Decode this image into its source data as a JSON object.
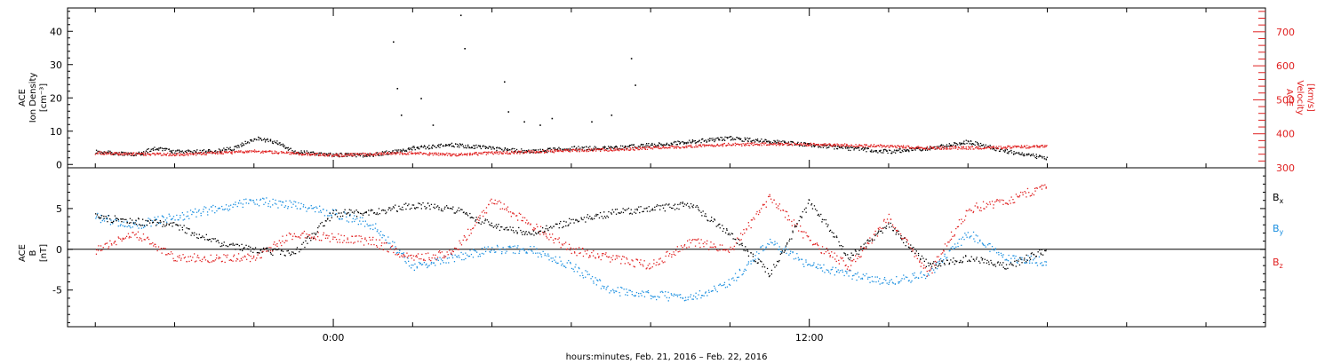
{
  "colors": {
    "black": "#000000",
    "red": "#e02020",
    "blue": "#1a8fe0"
  },
  "chart_data": [
    {
      "type": "scatter",
      "panel": "top",
      "ylabel_left_lines": [
        "ACE",
        "Ion Density",
        "[cm⁻³]"
      ],
      "ylabel_right_lines": [
        "ACE",
        "Velocity",
        "[km/s]"
      ],
      "ylim_left": [
        -1,
        47
      ],
      "ylim_right": [
        300,
        770
      ],
      "yticks_left": [
        0,
        10,
        20,
        30,
        40
      ],
      "yticks_right": [
        300,
        400,
        500,
        600,
        700
      ],
      "series": [
        {
          "axis": "left",
          "color": "black",
          "x": [
            -6,
            -5,
            -4.5,
            -4,
            -3,
            -2.5,
            -2,
            -1.5,
            -1,
            0,
            1,
            1.5,
            2,
            3,
            4,
            5,
            6,
            7,
            8,
            9,
            10,
            11,
            12,
            13,
            14,
            15,
            16,
            17,
            18
          ],
          "y": [
            4,
            3,
            5,
            4,
            4,
            5,
            8,
            7,
            4,
            3,
            3,
            4,
            5,
            6,
            5,
            4,
            5,
            5,
            6,
            7,
            8,
            7,
            6,
            5,
            4,
            5,
            7,
            4,
            2
          ]
        },
        {
          "axis": "left",
          "color": "black",
          "mode": "points",
          "x": [
            1.5,
            1.6,
            1.7,
            2.2,
            2.5,
            3.2,
            3.3,
            4.3,
            4.4,
            4.8,
            5.2,
            5.5,
            6.5,
            7.0,
            7.5,
            7.6
          ],
          "y": [
            37,
            23,
            15,
            20,
            12,
            45,
            35,
            25,
            16,
            13,
            12,
            14,
            13,
            15,
            32,
            24
          ]
        },
        {
          "axis": "right",
          "color": "red",
          "x": [
            -6,
            -4,
            -2,
            0,
            1,
            2,
            3,
            4,
            5,
            6,
            7,
            8,
            9,
            10,
            11,
            12,
            13,
            14,
            15,
            16,
            17,
            18
          ],
          "y": [
            345,
            340,
            350,
            338,
            342,
            345,
            340,
            345,
            348,
            352,
            355,
            360,
            365,
            370,
            372,
            370,
            368,
            365,
            360,
            360,
            362,
            365
          ]
        }
      ]
    },
    {
      "type": "scatter",
      "panel": "bottom",
      "ylabel_lines": [
        "ACE",
        "B",
        "[nT]"
      ],
      "ylim": [
        -9.5,
        10
      ],
      "yticks": [
        -5,
        0,
        5
      ],
      "legend": [
        {
          "label": "B",
          "sub": "x",
          "color": "black"
        },
        {
          "label": "B",
          "sub": "y",
          "color": "blue"
        },
        {
          "label": "B",
          "sub": "z",
          "color": "red"
        }
      ],
      "series": [
        {
          "label": "Bx",
          "color": "black",
          "x": [
            -6,
            -5,
            -4,
            -3,
            -2,
            -1,
            0,
            1,
            2,
            3,
            4,
            5,
            6,
            7,
            8,
            9,
            10,
            11,
            12,
            13,
            14,
            15,
            16,
            17,
            18
          ],
          "y": [
            4,
            3.5,
            3,
            1,
            0,
            -0.5,
            4.5,
            4.5,
            5.5,
            5,
            3,
            2,
            3.5,
            4.5,
            5,
            5.5,
            2,
            -3,
            6,
            -1,
            3,
            -2,
            -1,
            -2,
            0
          ]
        },
        {
          "label": "By",
          "color": "blue",
          "x": [
            -6,
            -5,
            -4,
            -3,
            -2,
            -1,
            0,
            1,
            2,
            3,
            4,
            5,
            6,
            7,
            8,
            9,
            10,
            11,
            12,
            13,
            14,
            15,
            16,
            17,
            18
          ],
          "y": [
            4,
            3,
            4,
            5,
            6,
            5.5,
            4.5,
            3,
            -2,
            -1,
            0,
            0,
            -2,
            -5,
            -5.5,
            -6,
            -4,
            1,
            -2,
            -3,
            -4,
            -3,
            2,
            -1,
            -1.5
          ]
        },
        {
          "label": "Bz",
          "color": "red",
          "x": [
            -6,
            -5,
            -4,
            -3,
            -2,
            -1,
            0,
            1,
            2,
            3,
            4,
            5,
            6,
            7,
            8,
            9,
            10,
            11,
            12,
            13,
            14,
            15,
            16,
            17,
            18
          ],
          "y": [
            0,
            2,
            -1,
            -1,
            -1,
            2,
            1.5,
            1,
            -1,
            -0.5,
            6,
            3,
            0,
            -1,
            -2,
            1,
            0,
            6.5,
            1,
            -2,
            4,
            -3,
            5,
            6,
            8
          ]
        }
      ]
    }
  ],
  "x_axis": {
    "xlim": [
      -6.7,
      23.5
    ],
    "tick_labels": [
      {
        "x": 0,
        "label": "0:00"
      },
      {
        "x": 12,
        "label": "12:00"
      }
    ],
    "xlabel": "hours:minutes, Feb. 21, 2016 – Feb. 22, 2016"
  }
}
